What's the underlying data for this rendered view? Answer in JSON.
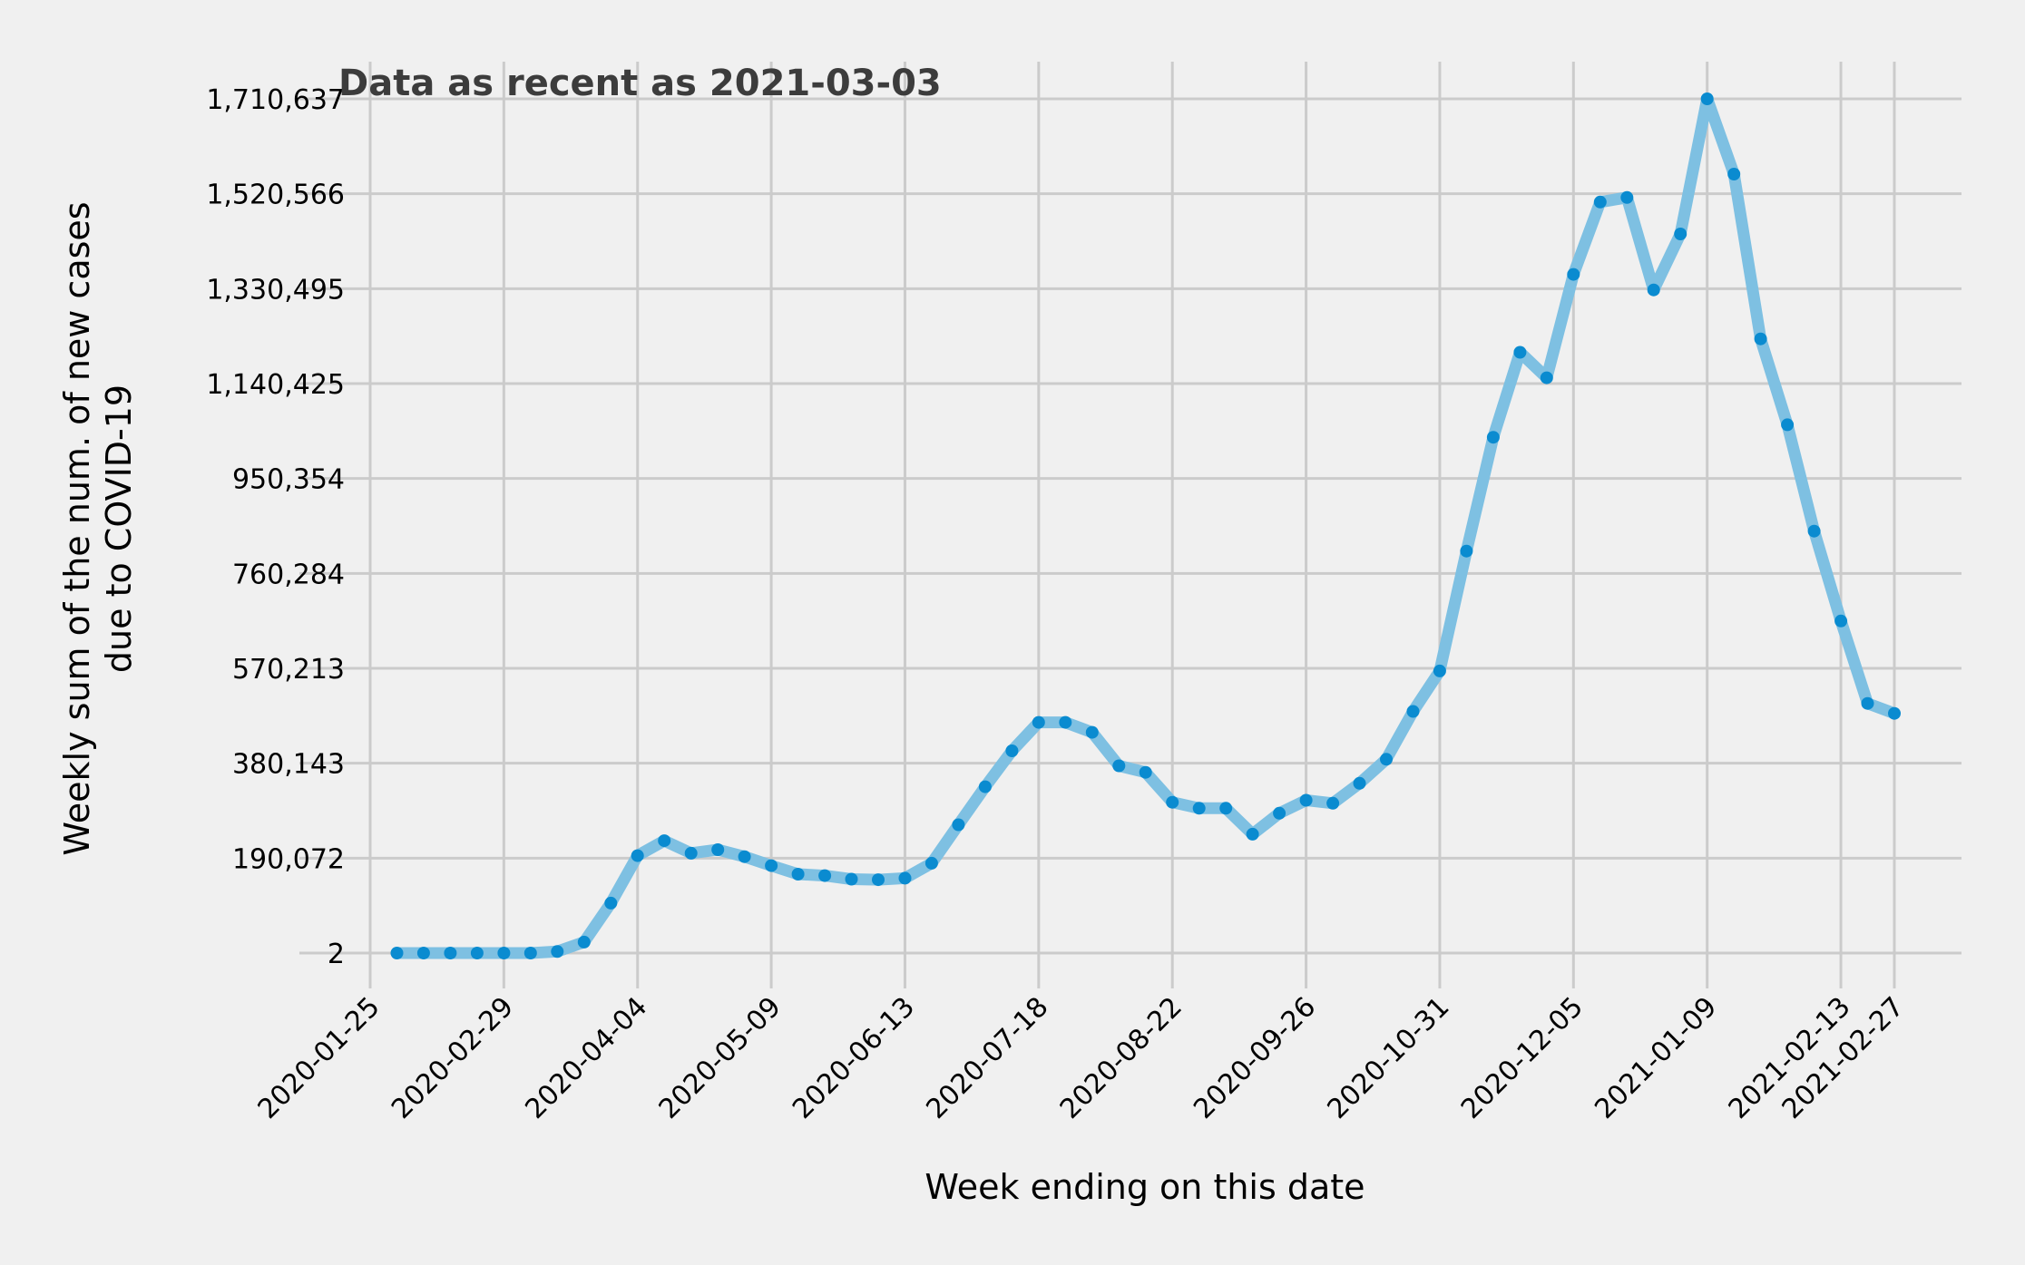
{
  "chart_data": {
    "type": "line",
    "annotation": "Data as recent as 2021-03-03",
    "xlabel": "Week ending on this date",
    "ylabel_lines": [
      "Weekly sum of the num. of new cases",
      "due to COVID-19"
    ],
    "x_tick_labels": [
      "2020-01-25",
      "2020-02-29",
      "2020-04-04",
      "2020-05-09",
      "2020-06-13",
      "2020-07-18",
      "2020-08-22",
      "2020-09-26",
      "2020-10-31",
      "2020-12-05",
      "2021-01-09",
      "2021-02-13",
      "2021-02-27"
    ],
    "y_tick_labels": [
      "2",
      "190,072",
      "380,143",
      "570,213",
      "760,284",
      "950,354",
      "1,140,425",
      "1,330,495",
      "1,520,566",
      "1,710,637"
    ],
    "y_tick_values": [
      2,
      190072,
      380143,
      570213,
      760284,
      950354,
      1140425,
      1330495,
      1520566,
      1710637
    ],
    "ylim": [
      2,
      1710637
    ],
    "xlim": [
      "2020-01-25",
      "2021-02-27"
    ],
    "grid": true,
    "line_color": "#7ec0e2",
    "marker_color": "#0a8bd0",
    "series": [
      {
        "x": [
          "2020-02-01",
          "2020-02-08",
          "2020-02-15",
          "2020-02-22",
          "2020-02-29",
          "2020-03-07",
          "2020-03-14",
          "2020-03-21",
          "2020-03-28",
          "2020-04-04",
          "2020-04-11",
          "2020-04-18",
          "2020-04-25",
          "2020-05-02",
          "2020-05-09",
          "2020-05-16",
          "2020-05-23",
          "2020-05-30",
          "2020-06-06",
          "2020-06-13",
          "2020-06-20",
          "2020-06-27",
          "2020-07-04",
          "2020-07-11",
          "2020-07-18",
          "2020-07-25",
          "2020-08-01",
          "2020-08-08",
          "2020-08-15",
          "2020-08-22",
          "2020-08-29",
          "2020-09-05",
          "2020-09-12",
          "2020-09-19",
          "2020-09-26",
          "2020-10-03",
          "2020-10-10",
          "2020-10-17",
          "2020-10-24",
          "2020-10-31",
          "2020-11-07",
          "2020-11-14",
          "2020-11-21",
          "2020-11-28",
          "2020-12-05",
          "2020-12-12",
          "2020-12-19",
          "2020-12-26",
          "2021-01-02",
          "2021-01-09",
          "2021-01-16",
          "2021-01-23",
          "2021-01-30",
          "2021-02-06",
          "2021-02-13",
          "2021-02-20",
          "2021-02-27"
        ],
        "values": [
          2,
          4,
          10,
          15,
          20,
          40,
          3000,
          22000,
          100000,
          195000,
          225000,
          200000,
          207000,
          193000,
          175000,
          158000,
          155000,
          148000,
          147000,
          150000,
          180000,
          257000,
          333000,
          405000,
          462000,
          462000,
          442000,
          375000,
          362000,
          302000,
          290000,
          290000,
          238000,
          280000,
          306000,
          300000,
          340000,
          388000,
          484000,
          565000,
          805000,
          1033000,
          1203000,
          1152000,
          1359000,
          1504000,
          1513000,
          1328000,
          1440000,
          1710637,
          1560000,
          1230000,
          1058000,
          845000,
          665000,
          500000,
          480000
        ]
      }
    ]
  }
}
